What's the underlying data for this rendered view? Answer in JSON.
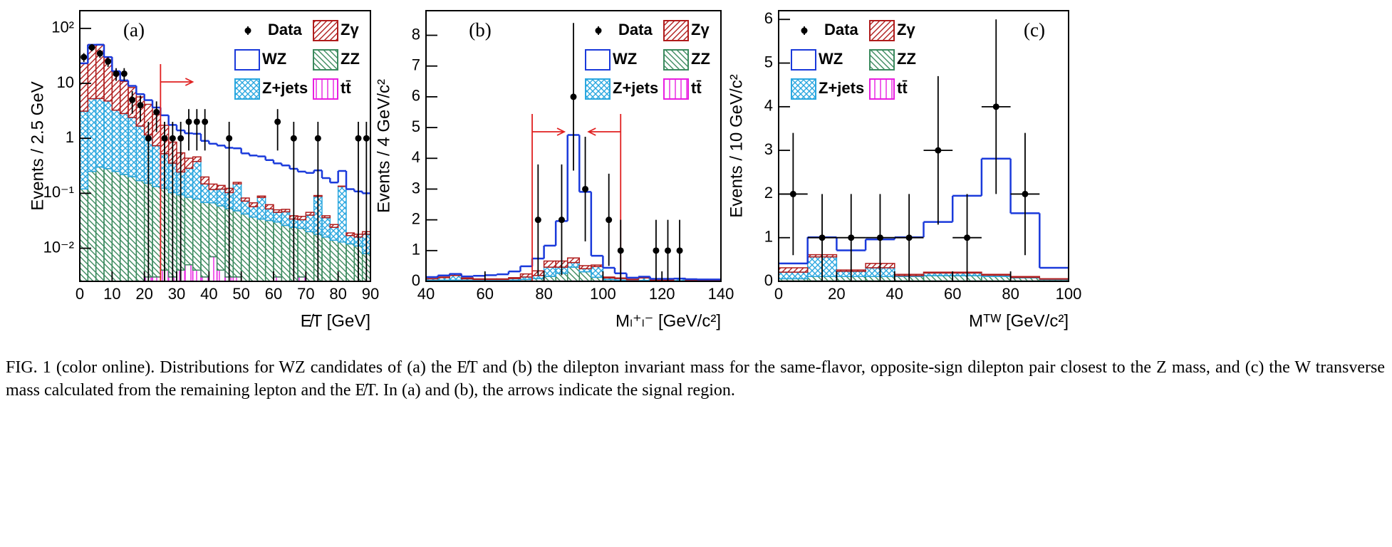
{
  "chart_data": [
    {
      "type": "histogram",
      "label": "(a)",
      "y_label": "Events / 2.5 GeV",
      "x_label": "E̸T [GeV]",
      "yscale": "log",
      "legend": "upper right",
      "bins": [
        0,
        2.5,
        5,
        7.5,
        10,
        12.5,
        15,
        17.5,
        20,
        22.5,
        25,
        27.5,
        30,
        32.5,
        35,
        37.5,
        40,
        42.5,
        45,
        47.5,
        50,
        52.5,
        55,
        57.5,
        60,
        62.5,
        65,
        67.5,
        70,
        72.5,
        75,
        77.5,
        80,
        82.5,
        85,
        87.5,
        90
      ],
      "xlim": [
        0,
        90
      ],
      "xticks": [
        0,
        10,
        20,
        30,
        40,
        50,
        60,
        70,
        80,
        90
      ],
      "ylim": [
        0.0025,
        210
      ],
      "yticks": [
        {
          "value": 0.01,
          "label": "10⁻²"
        },
        {
          "value": 0.1,
          "label": "10⁻¹"
        },
        1,
        10,
        {
          "value": 100,
          "label": "10²"
        }
      ],
      "series": [
        {
          "name": "tt̄",
          "color": "#e81ee0",
          "hatch": "vertical",
          "values": [
            0,
            0,
            0,
            0,
            0,
            0,
            0,
            0,
            0.003,
            0.003,
            0.004,
            0.003,
            0.004,
            0.005,
            0.004,
            0.003,
            0.007,
            0.004,
            0.003,
            0.003,
            0.002,
            0.002,
            0.002,
            0.002,
            0.003,
            0.002,
            0.002,
            0.003,
            0.002,
            0.002,
            0.002,
            0.002,
            0.002,
            0.002,
            0.002,
            0
          ]
        },
        {
          "name": "ZZ",
          "color": "#3b8a5e",
          "hatch": "diagonal-down",
          "values": [
            0.12,
            0.25,
            0.3,
            0.28,
            0.25,
            0.22,
            0.2,
            0.17,
            0.15,
            0.13,
            0.12,
            0.1,
            0.09,
            0.08,
            0.075,
            0.065,
            0.06,
            0.055,
            0.05,
            0.045,
            0.04,
            0.035,
            0.032,
            0.03,
            0.027,
            0.024,
            0.022,
            0.02,
            0.018,
            0.016,
            0.014,
            0.012,
            0.011,
            0.01,
            0.009,
            0.008
          ]
        },
        {
          "name": "Z+jets",
          "color": "#2aa7df",
          "hatch": "cross",
          "values": [
            3,
            5,
            5,
            4.5,
            3,
            2.6,
            2.2,
            1.5,
            1.0,
            0.6,
            0.4,
            0.25,
            0.15,
            0.2,
            0.3,
            0.08,
            0.05,
            0.06,
            0.05,
            0.1,
            0.03,
            0.02,
            0.05,
            0.02,
            0.015,
            0.02,
            0.01,
            0.01,
            0.02,
            0.07,
            0.02,
            0.01,
            0.12,
            0.005,
            0.005,
            0.01
          ]
        },
        {
          "name": "Zγ",
          "color": "#b01c1c",
          "hatch": "diagonal-up",
          "values": [
            20,
            45,
            45,
            25,
            13,
            8,
            6,
            4,
            3,
            2,
            1.2,
            0.5,
            0.3,
            0.15,
            0.08,
            0.05,
            0.03,
            0.02,
            0.02,
            0.01,
            0.01,
            0.01,
            0.005,
            0.01,
            0.005,
            0.005,
            0.005,
            0.005,
            0.005,
            0.003,
            0.003,
            0.003,
            0.002,
            0.002,
            0.002,
            0.002
          ]
        },
        {
          "name": "WZ",
          "color": "#1a3adb",
          "values": [
            0.05,
            0.1,
            0.2,
            0.3,
            0.4,
            0.5,
            0.6,
            0.7,
            0.8,
            0.9,
            0.9,
            0.9,
            0.85,
            0.8,
            0.75,
            0.7,
            0.65,
            0.6,
            0.55,
            0.5,
            0.45,
            0.42,
            0.38,
            0.34,
            0.3,
            0.27,
            0.24,
            0.21,
            0.19,
            0.17,
            0.15,
            0.13,
            0.12,
            0.1,
            0.09,
            0.08
          ]
        }
      ],
      "points": {
        "name": "Data",
        "color": "#000000",
        "x": [
          1.25,
          3.75,
          6.25,
          8.75,
          11.25,
          13.75,
          16.25,
          18.75,
          21.25,
          23.75,
          26.25,
          28.75,
          31.25,
          33.75,
          36.25,
          38.75,
          46.25,
          61.25,
          66.25,
          73.75,
          86.25,
          88.75
        ],
        "values": [
          30,
          45,
          35,
          25,
          15,
          15,
          5,
          4,
          1,
          3,
          1,
          1,
          1,
          2,
          2,
          2,
          1,
          2,
          1,
          1,
          1,
          1
        ],
        "errors": [
          5.5,
          6.7,
          5.9,
          5,
          3.9,
          3.9,
          2.2,
          2,
          1,
          1.7,
          1,
          1,
          1,
          1.4,
          1.4,
          1.4,
          1,
          1.4,
          1,
          1,
          1,
          1
        ]
      },
      "cuts": [
        {
          "x": 25,
          "direction": "right"
        }
      ]
    },
    {
      "type": "histogram",
      "label": "(b)",
      "y_label": "Events / 4 GeV/c²",
      "x_label": "Mₗ⁺ₗ⁻ [GeV/c²]",
      "legend": "upper right",
      "bins": [
        40,
        44,
        48,
        52,
        56,
        60,
        64,
        68,
        72,
        76,
        80,
        84,
        88,
        92,
        96,
        100,
        104,
        108,
        112,
        116,
        120,
        124,
        128,
        132,
        136,
        140
      ],
      "xlim": [
        40,
        140
      ],
      "xticks": [
        40,
        60,
        80,
        100,
        120,
        140
      ],
      "ylim": [
        0,
        8.8
      ],
      "yticks": [
        0,
        1,
        2,
        3,
        4,
        5,
        6,
        7,
        8
      ],
      "series": [
        {
          "name": "tt̄",
          "color": "#e81ee0",
          "hatch": "vertical",
          "values": [
            0.01,
            0.01,
            0.01,
            0.01,
            0.01,
            0.01,
            0.01,
            0.01,
            0.01,
            0.01,
            0.01,
            0.01,
            0.01,
            0.01,
            0.01,
            0.01,
            0.01,
            0.01,
            0.01,
            0.01,
            0.01,
            0.01,
            0.01,
            0.01,
            0.01
          ]
        },
        {
          "name": "ZZ",
          "color": "#3b8a5e",
          "hatch": "diagonal-down",
          "values": [
            0.02,
            0.03,
            0.03,
            0.02,
            0.02,
            0.02,
            0.02,
            0.03,
            0.05,
            0.08,
            0.15,
            0.25,
            0.45,
            0.3,
            0.12,
            0.05,
            0.03,
            0.02,
            0.02,
            0.01,
            0.01,
            0.01,
            0.01,
            0.01,
            0.01
          ]
        },
        {
          "name": "Z+jets",
          "color": "#2aa7df",
          "hatch": "cross",
          "values": [
            0.05,
            0.08,
            0.15,
            0.05,
            0.03,
            0.03,
            0.03,
            0.05,
            0.08,
            0.1,
            0.3,
            0.2,
            0.15,
            0.1,
            0.35,
            0.05,
            0.05,
            0.02,
            0.08,
            0.02,
            0.02,
            0.06,
            0.02,
            0.01,
            0.01
          ]
        },
        {
          "name": "Zγ",
          "color": "#b01c1c",
          "hatch": "diagonal-up",
          "values": [
            0.01,
            0.02,
            0.05,
            0.03,
            0.02,
            0.02,
            0.02,
            0.03,
            0.1,
            0.15,
            0.2,
            0.2,
            0.15,
            0.1,
            0.05,
            0.03,
            0.02,
            0.02,
            0.02,
            0.01,
            0.01,
            0.01,
            0.01,
            0.01,
            0.01
          ]
        },
        {
          "name": "WZ",
          "color": "#1a3adb",
          "values": [
            0.05,
            0.05,
            0,
            0.05,
            0.1,
            0.12,
            0.15,
            0.2,
            0.25,
            0.4,
            0.5,
            1.3,
            4.0,
            2.4,
            0.3,
            0.3,
            0.15,
            0.05,
            0.02,
            0.03,
            0.03,
            0,
            0.02,
            0.02,
            0.02
          ]
        }
      ],
      "points": {
        "name": "Data",
        "color": "#000000",
        "x": [
          78,
          86,
          90,
          94,
          102,
          106,
          118,
          122,
          126
        ],
        "values": [
          2,
          2,
          6,
          3,
          2,
          1,
          1,
          1,
          1
        ],
        "errors": [
          1.8,
          1.8,
          2.4,
          1.7,
          1.5,
          1,
          1,
          1,
          1
        ]
      },
      "cuts": [
        {
          "x": 76,
          "direction": "right"
        },
        {
          "x": 106,
          "direction": "left"
        }
      ]
    },
    {
      "type": "histogram",
      "label": "(c)",
      "y_label": "Events / 10 GeV/c²",
      "x_label": "Mᵀᵂ [GeV/c²]",
      "legend": "upper left",
      "bins": [
        0,
        10,
        20,
        30,
        40,
        50,
        60,
        70,
        80,
        90,
        100
      ],
      "xlim": [
        0,
        100
      ],
      "xticks": [
        0,
        20,
        40,
        60,
        80,
        100
      ],
      "ylim": [
        0,
        6.2
      ],
      "yticks": [
        0,
        1,
        2,
        3,
        4,
        5,
        6
      ],
      "series": [
        {
          "name": "tt̄",
          "color": "#e81ee0",
          "hatch": "vertical",
          "values": [
            0.01,
            0.01,
            0.01,
            0.01,
            0.01,
            0.01,
            0.01,
            0.01,
            0.01,
            0.01
          ]
        },
        {
          "name": "ZZ",
          "color": "#3b8a5e",
          "hatch": "diagonal-down",
          "values": [
            0.05,
            0.1,
            0.1,
            0.1,
            0.1,
            0.12,
            0.12,
            0.1,
            0.07,
            0.03
          ]
        },
        {
          "name": "Z+jets",
          "color": "#2aa7df",
          "hatch": "cross",
          "values": [
            0.15,
            0.45,
            0.12,
            0.2,
            0.02,
            0.06,
            0.06,
            0.03,
            0.01,
            0.01
          ]
        },
        {
          "name": "Zγ",
          "color": "#b01c1c",
          "hatch": "diagonal-up",
          "values": [
            0.1,
            0.05,
            0.03,
            0.1,
            0.03,
            0.02,
            0.02,
            0.02,
            0.02,
            0.01
          ]
        },
        {
          "name": "WZ",
          "color": "#1a3adb",
          "values": [
            0.1,
            0.4,
            0.45,
            0.55,
            0.85,
            1.15,
            1.75,
            2.65,
            1.45,
            0.25
          ]
        }
      ],
      "points": {
        "name": "Data",
        "color": "#000000",
        "x": [
          5,
          15,
          25,
          35,
          45,
          55,
          65,
          75,
          85
        ],
        "values": [
          2,
          1,
          1,
          1,
          1,
          3,
          1,
          4,
          2
        ],
        "errors": [
          1.4,
          1,
          1,
          1,
          1,
          1.7,
          1,
          2,
          1.4
        ],
        "xerr": [
          5,
          5,
          5,
          5,
          5,
          5,
          5,
          5,
          5
        ]
      }
    }
  ],
  "caption": "FIG. 1 (color online).    Distributions for WZ candidates of (a) the E̸T and (b) the dilepton invariant mass for the same-flavor, opposite-sign dilepton pair closest to the Z mass, and (c) the W transverse mass calculated from the remaining lepton and the E̸T. In (a) and (b), the arrows indicate the signal region."
}
